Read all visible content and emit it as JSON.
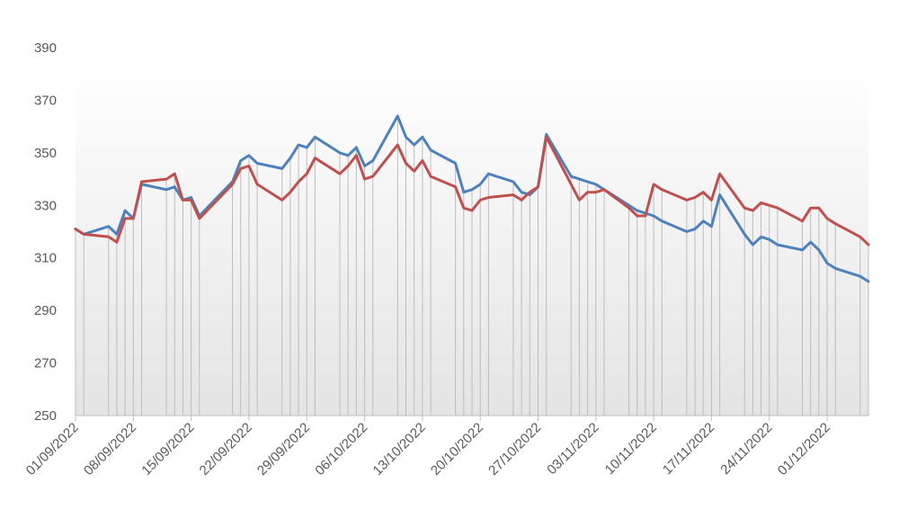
{
  "chart_data": {
    "type": "line",
    "title": "",
    "xlabel": "",
    "ylabel": "",
    "ylim": [
      250,
      390
    ],
    "yticks": [
      250,
      270,
      290,
      310,
      330,
      350,
      370,
      390
    ],
    "xtick_labels": [
      "01/09/2022",
      "08/09/2022",
      "15/09/2022",
      "22/09/2022",
      "29/09/2022",
      "06/10/2022",
      "13/10/2022",
      "20/10/2022",
      "27/10/2022",
      "03/11/2022",
      "10/11/2022",
      "17/11/2022",
      "24/11/2022",
      "01/12/2022"
    ],
    "x": [
      "2022-09-01",
      "2022-09-02",
      "2022-09-05",
      "2022-09-06",
      "2022-09-07",
      "2022-09-08",
      "2022-09-09",
      "2022-09-12",
      "2022-09-13",
      "2022-09-14",
      "2022-09-15",
      "2022-09-16",
      "2022-09-20",
      "2022-09-21",
      "2022-09-22",
      "2022-09-23",
      "2022-09-26",
      "2022-09-27",
      "2022-09-28",
      "2022-09-29",
      "2022-09-30",
      "2022-10-03",
      "2022-10-04",
      "2022-10-05",
      "2022-10-06",
      "2022-10-07",
      "2022-10-10",
      "2022-10-11",
      "2022-10-12",
      "2022-10-13",
      "2022-10-14",
      "2022-10-17",
      "2022-10-18",
      "2022-10-19",
      "2022-10-20",
      "2022-10-21",
      "2022-10-24",
      "2022-10-25",
      "2022-10-26",
      "2022-10-27",
      "2022-10-28",
      "2022-10-31",
      "2022-11-01",
      "2022-11-02",
      "2022-11-03",
      "2022-11-04",
      "2022-11-07",
      "2022-11-08",
      "2022-11-09",
      "2022-11-10",
      "2022-11-11",
      "2022-11-14",
      "2022-11-15",
      "2022-11-16",
      "2022-11-17",
      "2022-11-18",
      "2022-11-21",
      "2022-11-22",
      "2022-11-23",
      "2022-11-24",
      "2022-11-25",
      "2022-11-28",
      "2022-11-29",
      "2022-11-30",
      "2022-12-01",
      "2022-12-02",
      "2022-12-05",
      "2022-12-06"
    ],
    "series": [
      {
        "color": "#4f81bd",
        "values": [
          321,
          319,
          322,
          319,
          328,
          325,
          338,
          336,
          337,
          332,
          333,
          326,
          339,
          347,
          349,
          346,
          344,
          348,
          353,
          352,
          356,
          350,
          349,
          352,
          345,
          347,
          364,
          356,
          353,
          356,
          351,
          346,
          335,
          336,
          338,
          342,
          339,
          335,
          334,
          337,
          357,
          341,
          340,
          339,
          338,
          336,
          330,
          328,
          327,
          326,
          324,
          320,
          321,
          324,
          322,
          334,
          319,
          315,
          318,
          317,
          315,
          313,
          316,
          313,
          308,
          306,
          303,
          301
        ]
      },
      {
        "color": "#c0504d",
        "values": [
          321,
          319,
          318,
          316,
          325,
          325,
          339,
          340,
          342,
          332,
          332,
          325,
          338,
          344,
          345,
          338,
          332,
          335,
          339,
          342,
          348,
          342,
          345,
          349,
          340,
          341,
          353,
          346,
          343,
          347,
          341,
          337,
          329,
          328,
          332,
          333,
          334,
          332,
          335,
          337,
          356,
          338,
          332,
          335,
          335,
          336,
          329,
          326,
          326,
          338,
          336,
          332,
          333,
          335,
          332,
          342,
          329,
          328,
          331,
          330,
          329,
          324,
          329,
          329,
          325,
          323,
          318,
          315
        ]
      }
    ]
  }
}
